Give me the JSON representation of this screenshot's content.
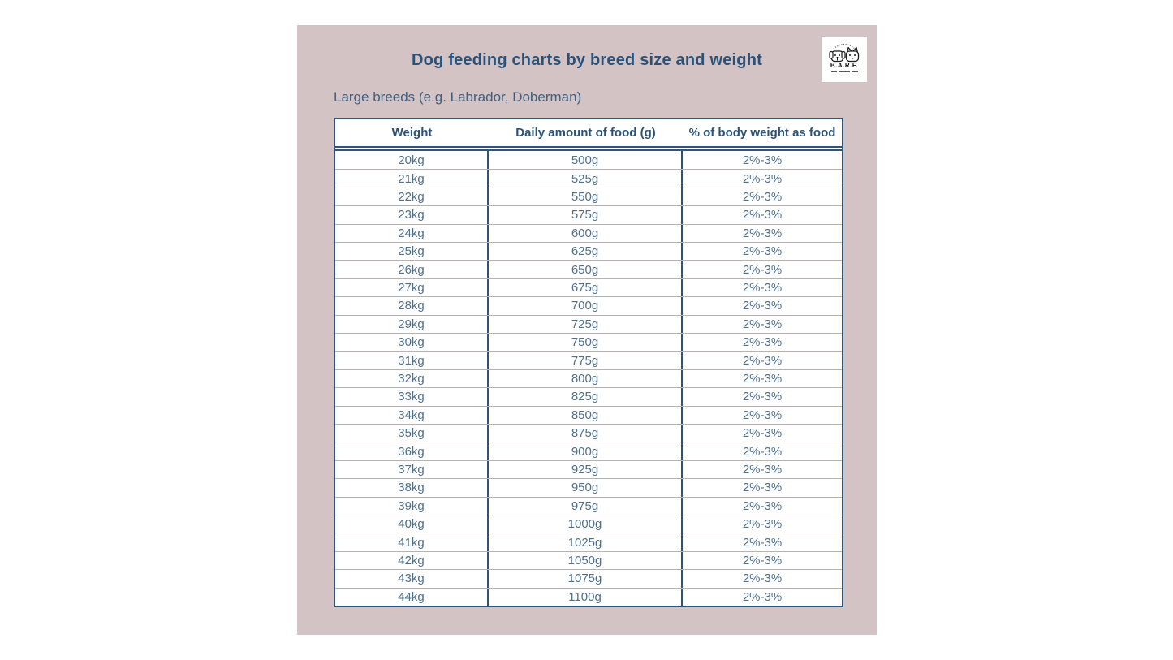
{
  "header": {
    "title": "Dog feeding charts by breed size and weight",
    "subtitle": "Large breeds (e.g. Labrador, Doberman)"
  },
  "logo": {
    "text": "B.A.R.F.",
    "icon": "dog-and-cat-faces"
  },
  "chart_data": {
    "type": "table",
    "title": "Dog feeding charts by breed size and weight",
    "section": "Large breeds (e.g. Labrador, Doberman)",
    "columns": [
      "Weight",
      "Daily amount of food (g)",
      "% of body weight as food"
    ],
    "rows": [
      [
        "20kg",
        "500g",
        "2%-3%"
      ],
      [
        "21kg",
        "525g",
        "2%-3%"
      ],
      [
        "22kg",
        "550g",
        "2%-3%"
      ],
      [
        "23kg",
        "575g",
        "2%-3%"
      ],
      [
        "24kg",
        "600g",
        "2%-3%"
      ],
      [
        "25kg",
        "625g",
        "2%-3%"
      ],
      [
        "26kg",
        "650g",
        "2%-3%"
      ],
      [
        "27kg",
        "675g",
        "2%-3%"
      ],
      [
        "28kg",
        "700g",
        "2%-3%"
      ],
      [
        "29kg",
        "725g",
        "2%-3%"
      ],
      [
        "30kg",
        "750g",
        "2%-3%"
      ],
      [
        "31kg",
        "775g",
        "2%-3%"
      ],
      [
        "32kg",
        "800g",
        "2%-3%"
      ],
      [
        "33kg",
        "825g",
        "2%-3%"
      ],
      [
        "34kg",
        "850g",
        "2%-3%"
      ],
      [
        "35kg",
        "875g",
        "2%-3%"
      ],
      [
        "36kg",
        "900g",
        "2%-3%"
      ],
      [
        "37kg",
        "925g",
        "2%-3%"
      ],
      [
        "38kg",
        "950g",
        "2%-3%"
      ],
      [
        "39kg",
        "975g",
        "2%-3%"
      ],
      [
        "40kg",
        "1000g",
        "2%-3%"
      ],
      [
        "41kg",
        "1025g",
        "2%-3%"
      ],
      [
        "42kg",
        "1050g",
        "2%-3%"
      ],
      [
        "43kg",
        "1075g",
        "2%-3%"
      ],
      [
        "44kg",
        "1100g",
        "2%-3%"
      ]
    ]
  },
  "colors": {
    "page_background": "#ffffff",
    "panel_background": "#d4c3c5",
    "accent_blue": "#29527a",
    "cell_text": "#4f6f8b",
    "table_border": "#2d547a",
    "row_divider": "#b8b2b3"
  }
}
